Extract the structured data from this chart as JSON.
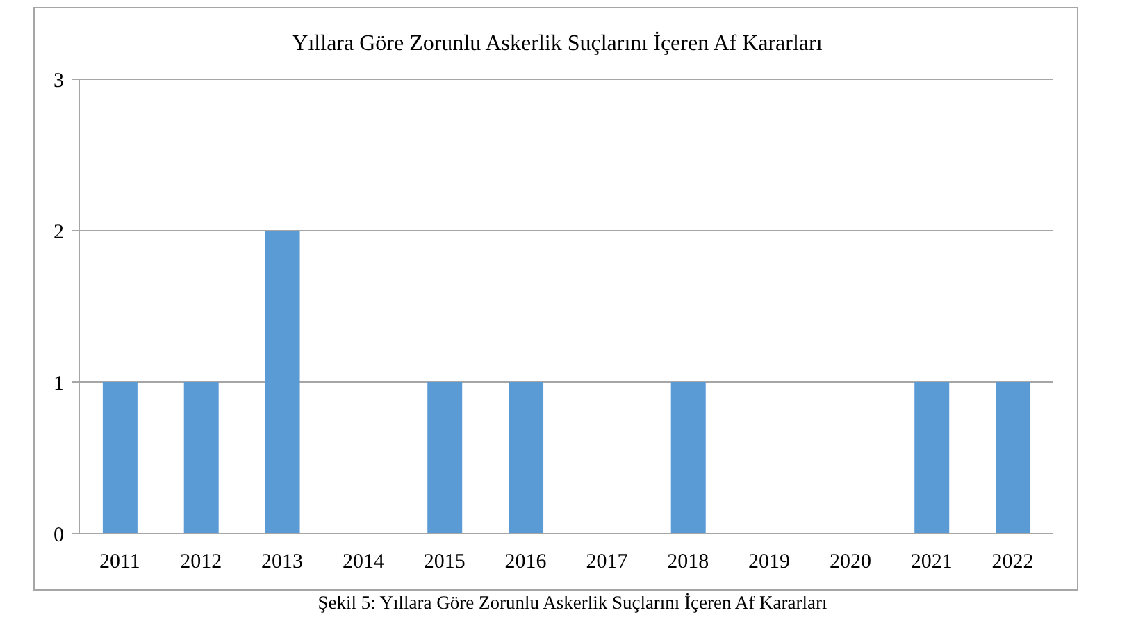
{
  "chart_data": {
    "type": "bar",
    "title": "Yıllara Göre Zorunlu Askerlik Suçlarını İçeren Af Kararları",
    "categories": [
      "2011",
      "2012",
      "2013",
      "2014",
      "2015",
      "2016",
      "2017",
      "2018",
      "2019",
      "2020",
      "2021",
      "2022"
    ],
    "values": [
      1,
      1,
      2,
      0,
      1,
      1,
      0,
      1,
      0,
      0,
      1,
      1
    ],
    "color": "#5b9bd5",
    "ylim": [
      0,
      3
    ],
    "yticks": [
      0,
      1,
      2,
      3
    ],
    "grid": "y",
    "annotations": [
      "Şekil 5: Yıllara Göre Zorunlu Askerlik Suçlarını İçeren Af Kararları"
    ]
  }
}
